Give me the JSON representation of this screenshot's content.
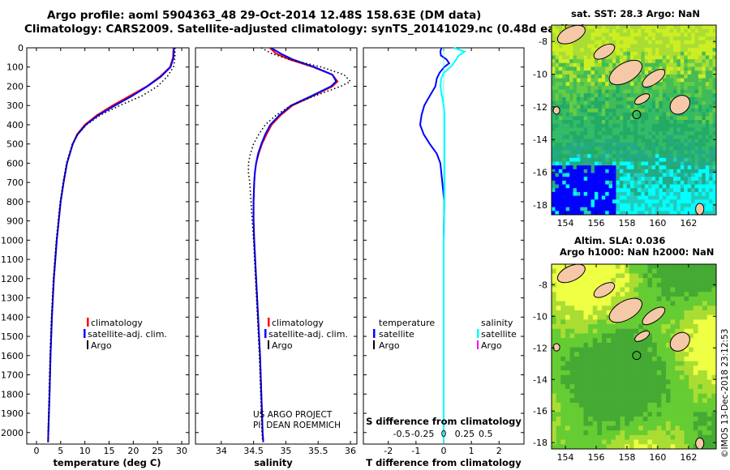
{
  "header": {
    "title_line1": "Argo profile: aoml 5904363_48 29-Oct-2014 12.48S 158.63E (DM data)",
    "title_line2": "Climatology: CARS2009. Satellite-adjusted climatology: synTS_20141029.nc (0.48d earlier)"
  },
  "colors": {
    "climatology": "#ff0000",
    "satellite": "#0000ff",
    "argo": "#000000",
    "s_satellite": "#00ffff",
    "s_argo": "#ff00ff"
  },
  "depth_axis": {
    "ticks": [
      "0",
      "100",
      "200",
      "300",
      "400",
      "500",
      "600",
      "700",
      "800",
      "900",
      "1000",
      "1100",
      "1200",
      "1300",
      "1400",
      "1500",
      "1600",
      "1700",
      "1800",
      "1900",
      "2000"
    ]
  },
  "chart_data": [
    {
      "type": "line",
      "title": "Temperature profile",
      "xlabel": "temperature (deg C)",
      "ylabel": "depth",
      "xlim": [
        -2,
        31.5
      ],
      "ylim": [
        2060,
        0
      ],
      "xticks": [
        "0",
        "5",
        "10",
        "15",
        "20",
        "25",
        "30"
      ],
      "legend": [
        "climatology",
        "satellite-adj. clim.",
        "Argo"
      ],
      "depth": [
        0,
        50,
        100,
        150,
        200,
        250,
        300,
        350,
        400,
        450,
        500,
        600,
        700,
        800,
        900,
        1000,
        1200,
        1400,
        1600,
        1800,
        2000,
        2050
      ],
      "series": [
        {
          "name": "climatology",
          "values": [
            28.3,
            28.2,
            27.6,
            25.5,
            22.8,
            19.3,
            15.7,
            12.5,
            10.0,
            8.4,
            7.5,
            6.3,
            5.6,
            5.0,
            4.6,
            4.2,
            3.6,
            3.2,
            2.9,
            2.7,
            2.45,
            2.4
          ]
        },
        {
          "name": "satellite-adj. clim.",
          "values": [
            28.4,
            28.3,
            27.7,
            25.7,
            22.9,
            19.8,
            16.2,
            12.8,
            10.2,
            8.5,
            7.5,
            6.3,
            5.6,
            5.0,
            4.6,
            4.2,
            3.6,
            3.2,
            2.9,
            2.7,
            2.45,
            2.4
          ]
        },
        {
          "name": "Argo",
          "values": [
            28.6,
            28.6,
            28.3,
            27.0,
            25.0,
            21.8,
            17.2,
            13.2,
            10.3,
            8.5,
            7.4,
            6.2,
            5.5,
            4.9,
            4.5,
            4.1,
            3.5,
            3.1,
            2.8,
            2.6,
            2.4,
            2.4
          ]
        }
      ]
    },
    {
      "type": "line",
      "title": "Salinity profile",
      "xlabel": "salinity",
      "ylabel": "depth",
      "xlim": [
        33.6,
        36.1
      ],
      "ylim": [
        2060,
        0
      ],
      "xticks": [
        "34",
        "34.5",
        "35",
        "35.5",
        "36"
      ],
      "legend": [
        "climatology",
        "satellite-adj. clim.",
        "Argo"
      ],
      "depth": [
        0,
        30,
        60,
        100,
        140,
        175,
        200,
        250,
        300,
        350,
        400,
        450,
        500,
        550,
        600,
        650,
        700,
        800,
        900,
        1000,
        1200,
        1400,
        1600,
        1800,
        2000,
        2050
      ],
      "series": [
        {
          "name": "climatology",
          "values": [
            34.75,
            34.85,
            35.05,
            35.42,
            35.72,
            35.8,
            35.72,
            35.42,
            35.1,
            34.92,
            34.78,
            34.7,
            34.63,
            34.58,
            34.54,
            34.52,
            34.51,
            34.5,
            34.5,
            34.51,
            34.54,
            34.57,
            34.6,
            34.62,
            34.64,
            34.65
          ]
        },
        {
          "name": "satellite-adj. clim.",
          "values": [
            34.77,
            34.92,
            35.1,
            35.44,
            35.72,
            35.78,
            35.7,
            35.4,
            35.08,
            34.9,
            34.76,
            34.68,
            34.62,
            34.57,
            34.54,
            34.52,
            34.51,
            34.5,
            34.5,
            34.51,
            34.54,
            34.57,
            34.6,
            34.62,
            34.64,
            34.65
          ]
        },
        {
          "name": "Argo",
          "values": [
            34.62,
            34.78,
            35.05,
            35.55,
            35.9,
            36.0,
            35.85,
            35.45,
            35.08,
            34.85,
            34.68,
            34.58,
            34.5,
            34.45,
            34.42,
            34.42,
            34.44,
            34.46,
            34.48,
            34.5,
            34.53,
            34.56,
            34.59,
            34.61,
            34.63,
            34.64
          ]
        }
      ]
    },
    {
      "type": "line",
      "title": "Difference from climatology",
      "xlabel": "T difference from climatology",
      "xlim": [
        -2.9,
        2.9
      ],
      "ylim": [
        2060,
        0
      ],
      "xticks": [
        "-2",
        "-1",
        "0",
        "1",
        "2"
      ],
      "s_xticks": [
        "-0.5",
        "-0.25",
        "0",
        "0.25",
        "0.5"
      ],
      "s_axis_title": "S difference from climatology",
      "legend_left_title": "temperature",
      "legend_right_title": "salinity",
      "legend_left": [
        "satellite",
        "Argo"
      ],
      "legend_right": [
        "satellite",
        "Argo"
      ],
      "depth": [
        0,
        20,
        40,
        60,
        80,
        100,
        130,
        160,
        200,
        250,
        300,
        350,
        400,
        450,
        500,
        550,
        600,
        700,
        800,
        1000,
        1200,
        1400,
        1600,
        1800,
        2000,
        2050
      ],
      "series": [
        {
          "name": "temperature satellite",
          "values": [
            -0.08,
            -0.12,
            -0.1,
            0.1,
            0.2,
            0.02,
            -0.15,
            -0.25,
            -0.3,
            -0.5,
            -0.7,
            -0.8,
            -0.85,
            -0.72,
            -0.5,
            -0.25,
            -0.12,
            -0.05,
            0.02,
            0.0,
            0.0,
            0.0,
            0.0,
            0.0,
            0.0,
            0.0
          ]
        },
        {
          "name": "salinity satellite",
          "values": [
            0.12,
            0.25,
            0.18,
            0.15,
            0.12,
            0.08,
            0.0,
            -0.03,
            -0.04,
            -0.02,
            0.0,
            0.01,
            0.01,
            0.01,
            0.01,
            0.01,
            0.01,
            0.01,
            0.01,
            0.0,
            0.0,
            0.0,
            0.0,
            0.0,
            0.0,
            0.0
          ]
        }
      ]
    }
  ],
  "credits": {
    "line1": "US ARGO PROJECT",
    "line2": "PI: DEAN ROEMMICH"
  },
  "maps": {
    "sst": {
      "title": "sat. SST: 28.3 Argo: NaN",
      "lat_ticks": [
        "-8",
        "-10",
        "-12",
        "-14",
        "-16",
        "-18"
      ],
      "lon_ticks": [
        "154",
        "156",
        "158",
        "160",
        "162"
      ]
    },
    "sla": {
      "title_line1": "Altim. SLA: 0.036",
      "title_line2": "Argo h1000: NaN h2000: NaN",
      "lat_ticks": [
        "-8",
        "-10",
        "-12",
        "-14",
        "-16",
        "-18"
      ],
      "lon_ticks": [
        "154",
        "156",
        "158",
        "160",
        "162"
      ]
    }
  },
  "footer": {
    "stamp": "©IMOS 13-Dec-2018 23:12:53"
  }
}
